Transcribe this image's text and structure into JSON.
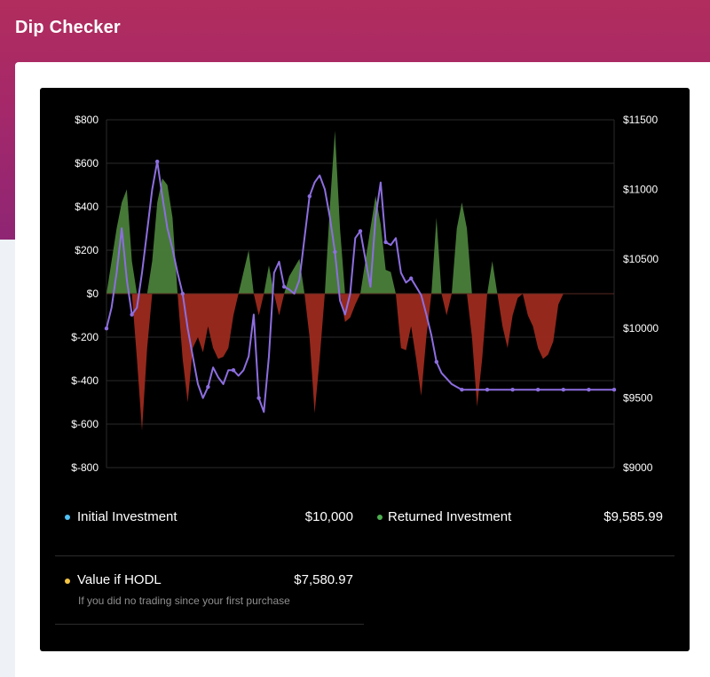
{
  "app": {
    "title": "Dip Checker"
  },
  "colors": {
    "header_top": "#b12d5d",
    "header_bottom": "#8f2574",
    "panel": "#000000",
    "positive_area": "#4a7f3a",
    "negative_area": "#9c2a1d",
    "price_line": "#8d6ee0",
    "dot_initial": "#4fc3f7",
    "dot_returned": "#4caf50",
    "dot_hodl": "#f5c542"
  },
  "stats": {
    "initial": {
      "label": "Initial Investment",
      "value": "$10,000",
      "icon": "blue-dot-icon"
    },
    "returned": {
      "label": "Returned Investment",
      "value": "$9,585.99",
      "icon": "green-dot-icon"
    },
    "hodl": {
      "label": "Value if HODL",
      "value": "$7,580.97",
      "hint": "If you did no trading since your first purchase",
      "icon": "yellow-dot-icon"
    }
  },
  "chart_data": {
    "type": "area",
    "title": "",
    "grid": true,
    "legend": "none",
    "y_left": {
      "ticks": [
        "$800",
        "$600",
        "$400",
        "$200",
        "$0",
        "$-200",
        "$-400",
        "$-600",
        "$-800"
      ],
      "range": [
        -800,
        800
      ]
    },
    "y_right": {
      "ticks": [
        "$11500",
        "$11000",
        "$10500",
        "$10000",
        "$9500",
        "$9000"
      ],
      "range": [
        9000,
        11500
      ]
    },
    "x": [
      0,
      1,
      2,
      3,
      4,
      5,
      6,
      7,
      8,
      9,
      10,
      11,
      12,
      13,
      14,
      15,
      16,
      17,
      18,
      19,
      20,
      21,
      22,
      23,
      24,
      25,
      26,
      27,
      28,
      29,
      30,
      31,
      32,
      33,
      34,
      35,
      36,
      37,
      38,
      39,
      40,
      41,
      42,
      43,
      44,
      45,
      46,
      47,
      48,
      49,
      50,
      51,
      52,
      53,
      54,
      55,
      56,
      57,
      58,
      59,
      60,
      61,
      62,
      63,
      64,
      65,
      66,
      67,
      68,
      69,
      70,
      71,
      72,
      73,
      74,
      75,
      76,
      77,
      78,
      79,
      80,
      81,
      82,
      83,
      84,
      85,
      86,
      87,
      88,
      89,
      90,
      91,
      92,
      93,
      94,
      95,
      96,
      97,
      98,
      99,
      100
    ],
    "series": [
      {
        "axis": "left",
        "type": "area",
        "values": [
          0,
          150,
          300,
          420,
          480,
          150,
          -300,
          -630,
          -250,
          150,
          420,
          530,
          500,
          350,
          0,
          -300,
          -500,
          -250,
          -200,
          -270,
          -150,
          -250,
          -300,
          -290,
          -250,
          -100,
          0,
          100,
          200,
          0,
          -100,
          0,
          130,
          0,
          -100,
          0,
          80,
          120,
          160,
          0,
          -200,
          -550,
          -300,
          0,
          400,
          750,
          300,
          -130,
          -110,
          -50,
          0,
          150,
          300,
          450,
          320,
          110,
          100,
          0,
          -250,
          -260,
          -150,
          -300,
          -470,
          -200,
          0,
          350,
          0,
          -100,
          0,
          300,
          420,
          300,
          -200,
          -520,
          -300,
          0,
          150,
          0,
          -150,
          -250,
          -100,
          -20,
          0,
          -100,
          -150,
          -250,
          -300,
          -280,
          -220,
          -50,
          0,
          0,
          0,
          0,
          0,
          0,
          0,
          0,
          0,
          0,
          0
        ]
      },
      {
        "axis": "right",
        "type": "line",
        "values": [
          10000,
          10150,
          10400,
          10720,
          10350,
          10100,
          10150,
          10400,
          10700,
          11000,
          11200,
          10950,
          10720,
          10570,
          10400,
          10250,
          10000,
          9800,
          9600,
          9500,
          9580,
          9720,
          9650,
          9600,
          9700,
          9700,
          9660,
          9700,
          9800,
          10100,
          9500,
          9400,
          9800,
          10400,
          10480,
          10300,
          10280,
          10250,
          10350,
          10650,
          10950,
          11050,
          11100,
          11000,
          10800,
          10550,
          10200,
          10100,
          10250,
          10650,
          10700,
          10500,
          10300,
          10800,
          11050,
          10620,
          10600,
          10650,
          10400,
          10330,
          10360,
          10300,
          10240,
          10100,
          9950,
          9760,
          9680,
          9640,
          9600,
          9580,
          9560,
          9560,
          9560,
          9560,
          9560,
          9560,
          9560,
          9560,
          9560,
          9560,
          9560,
          9560,
          9560,
          9560,
          9560,
          9560,
          9560,
          9560,
          9560,
          9560,
          9560,
          9560,
          9560,
          9560,
          9560,
          9560,
          9560,
          9560,
          9560,
          9560,
          9560
        ]
      }
    ]
  }
}
